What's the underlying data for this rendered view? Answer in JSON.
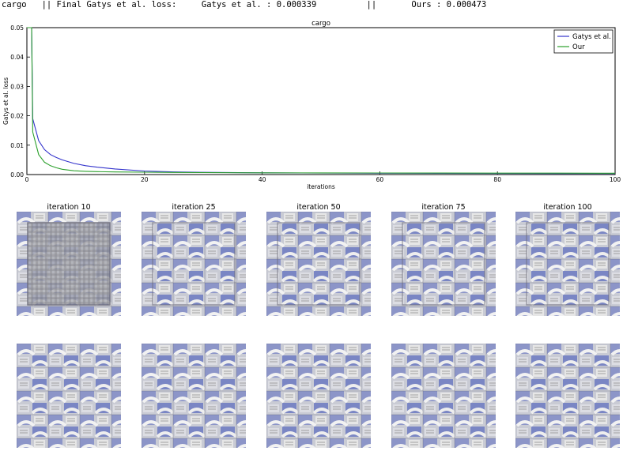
{
  "header": {
    "dataset": "cargo",
    "label": "|| Final Gatys et al. loss:",
    "gatys_text": "Gatys et al. : 0.000339",
    "sep": "||",
    "ours_text": "Ours : 0.000473"
  },
  "chart_data": {
    "type": "line",
    "title": "cargo",
    "xlabel": "iterations",
    "ylabel": "Gatys et al. loss",
    "xlim": [
      0,
      100
    ],
    "ylim": [
      0,
      0.05
    ],
    "xticks": [
      "0",
      "20",
      "40",
      "60",
      "80",
      "100"
    ],
    "yticks": [
      "0.00",
      "0.01",
      "0.02",
      "0.03",
      "0.04",
      "0.05"
    ],
    "grid": false,
    "legend": "top-right",
    "series": [
      {
        "name": "Gatys et al.",
        "color": "#3333cc",
        "x": [
          0,
          0.8,
          1,
          2,
          3,
          4,
          5,
          6,
          8,
          10,
          12,
          15,
          20,
          25,
          30,
          40,
          50,
          60,
          70,
          80,
          90,
          100
        ],
        "y": [
          0.05,
          0.05,
          0.019,
          0.0115,
          0.0085,
          0.0068,
          0.0058,
          0.005,
          0.0038,
          0.003,
          0.0025,
          0.0019,
          0.0012,
          0.0009,
          0.00075,
          0.0006,
          0.0005,
          0.00045,
          0.0004,
          0.00037,
          0.00035,
          0.00034
        ]
      },
      {
        "name": "Our",
        "color": "#2ca02c",
        "x": [
          0,
          0.8,
          1,
          2,
          3,
          4,
          5,
          6,
          8,
          10,
          12,
          15,
          20,
          25,
          30,
          40,
          50,
          60,
          70,
          80,
          90,
          100
        ],
        "y": [
          0.05,
          0.05,
          0.0145,
          0.0068,
          0.0042,
          0.003,
          0.0023,
          0.0018,
          0.0013,
          0.0011,
          0.001,
          0.0009,
          0.0008,
          0.00072,
          0.00066,
          0.0006,
          0.00056,
          0.00053,
          0.0005,
          0.00049,
          0.00048,
          0.00047
        ]
      }
    ]
  },
  "thumbnails": {
    "titles": [
      "iteration 10",
      "iteration 25",
      "iteration 50",
      "iteration 75",
      "iteration 100"
    ]
  }
}
